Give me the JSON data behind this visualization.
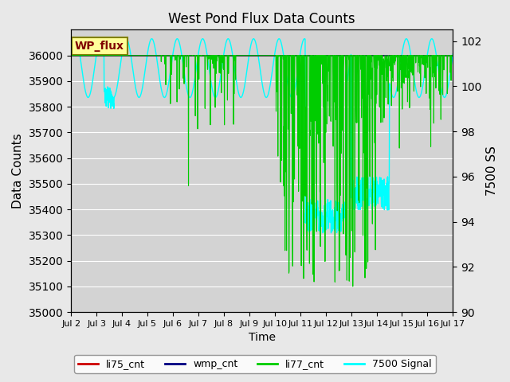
{
  "title": "West Pond Flux Data Counts",
  "xlabel": "Time",
  "ylabel_left": "Data Counts",
  "ylabel_right": "7500 SS",
  "ylim_left": [
    35000,
    36100
  ],
  "ylim_right": [
    90,
    102.5
  ],
  "yticks_left": [
    35000,
    35100,
    35200,
    35300,
    35400,
    35500,
    35600,
    35700,
    35800,
    35900,
    36000
  ],
  "yticks_right": [
    90,
    92,
    94,
    96,
    98,
    100,
    102
  ],
  "xtick_labels": [
    "Jul 2",
    "Jul 3",
    "Jul 4",
    "Jul 5",
    "Jul 6",
    "Jul 7",
    "Jul 8",
    "Jul 9",
    "Jul 10",
    "Jul 11",
    "Jul 12",
    "Jul 13",
    "Jul 14",
    "Jul 15",
    "Jul 16",
    "Jul 17"
  ],
  "n_days": 15,
  "annotation_text": "WP_flux",
  "bg_color": "#e8e8e8",
  "plot_bg_color": "#d3d3d3",
  "colors": {
    "li75_cnt": "#cc0000",
    "wmp_cnt": "#000080",
    "li77_cnt": "#00cc00",
    "signal_7500": "cyan"
  },
  "legend_labels": [
    "li75_cnt",
    "wmp_cnt",
    "li77_cnt",
    "7500 Signal"
  ],
  "legend_colors": [
    "#cc0000",
    "#000080",
    "#00cc00",
    "cyan"
  ]
}
